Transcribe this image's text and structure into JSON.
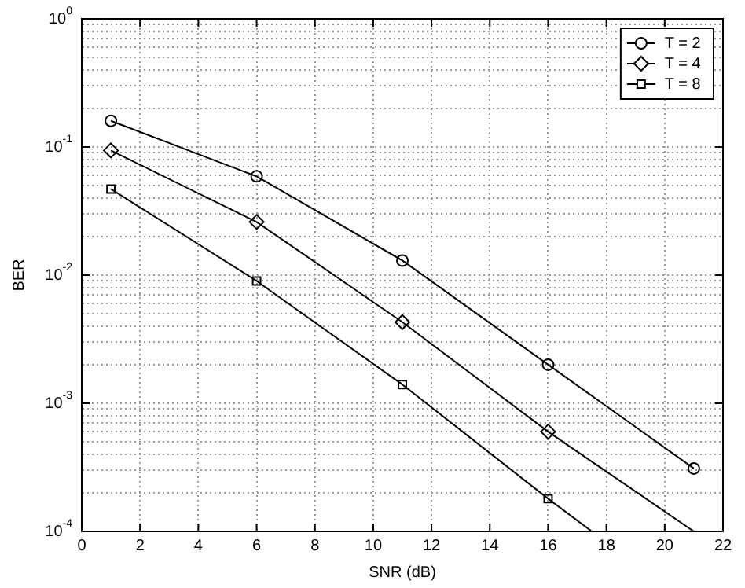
{
  "chart_data": {
    "type": "line",
    "xlabel": "SNR (dB)",
    "ylabel": "BER",
    "log": "y",
    "grid": true,
    "legend": "top right",
    "line_style": "solid",
    "x": [
      1,
      6,
      11,
      16,
      21
    ],
    "xlim": [
      0,
      22
    ],
    "xticks": [
      0,
      2,
      4,
      6,
      8,
      10,
      12,
      14,
      16,
      18,
      20,
      22
    ],
    "ylim": [
      0.0001,
      1
    ],
    "yticks": [
      {
        "value": 0.0001,
        "label": "10$^{-4}$"
      },
      {
        "value": 0.001,
        "label": "10$^{-3}$"
      },
      {
        "value": 0.01,
        "label": "10$^{-2}$"
      },
      {
        "value": 0.1,
        "label": "10$^{-1}$"
      },
      {
        "value": 1,
        "label": "10$^{0}$"
      }
    ],
    "series": [
      {
        "name": "T = 2",
        "color": "#000000",
        "marker": "circle",
        "values": [
          0.16,
          0.059,
          0.013,
          0.002,
          0.00031
        ]
      },
      {
        "name": "T = 4",
        "color": "#000000",
        "marker": "diamond",
        "values": [
          0.094,
          0.026,
          0.0043,
          0.0006,
          0.0001
        ]
      },
      {
        "name": "T = 8",
        "color": "#000000",
        "marker": "square",
        "x": [
          1,
          6,
          11,
          16,
          17.5
        ],
        "values": [
          0.047,
          0.009,
          0.0014,
          0.00018,
          0.0001
        ]
      }
    ]
  }
}
